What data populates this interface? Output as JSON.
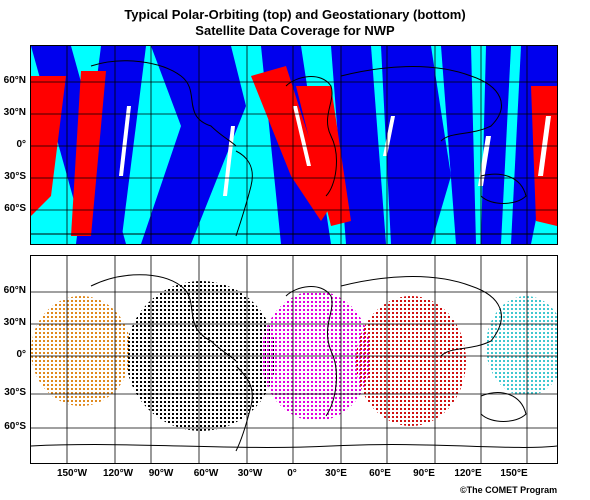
{
  "title_line1": "Typical Polar-Orbiting (top) and Geostationary (bottom)",
  "title_line2": "Satellite Data Coverage for NWP",
  "lat_labels": [
    "60°N",
    "30°N",
    "0°",
    "30°S",
    "60°S"
  ],
  "lon_labels": [
    "150°W",
    "120°W",
    "90°W",
    "60°W",
    "30°W",
    "0°",
    "30°E",
    "60°E",
    "90°E",
    "120°E",
    "150°E"
  ],
  "credit": "©The COMET Program",
  "top_panel": {
    "background_color": "#00ffff",
    "swath_colors": [
      "#ff0000",
      "#0000ff",
      "#ffffff"
    ]
  },
  "bottom_panel": {
    "geostationary_colors": [
      "#e08a1e",
      "#000000",
      "#e000e0",
      "#d01010",
      "#40c8d0"
    ]
  }
}
